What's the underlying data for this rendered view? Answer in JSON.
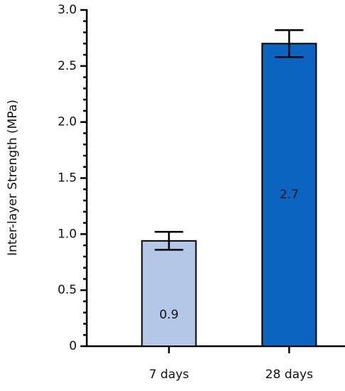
{
  "chart_data": {
    "type": "bar",
    "y_label": "Inter-layer Strength (MPa)",
    "categories": [
      "7 days",
      "28 days"
    ],
    "values": [
      0.94,
      2.7
    ],
    "value_labels": [
      "0.9",
      "2.7"
    ],
    "errors": [
      0.08,
      0.12
    ],
    "colors": [
      "#b4c7e7",
      "#0a64c0"
    ],
    "ylim": [
      0,
      3
    ],
    "yticks": [
      0,
      0.5,
      {
        "value": 1,
        "label": "1.0"
      },
      1.5,
      {
        "value": 2,
        "label": "2.0"
      },
      2.5,
      {
        "value": 3,
        "label": "3.0"
      }
    ],
    "yminorticks": [
      0.1,
      0.2,
      0.3,
      0.4,
      0.6,
      0.7,
      0.8,
      0.9,
      1.1,
      1.2,
      1.3,
      1.4,
      1.6,
      1.7,
      1.8,
      1.9,
      2.1,
      2.2,
      2.3,
      2.4,
      2.6,
      2.7,
      2.8,
      2.9
    ],
    "grid": false
  }
}
